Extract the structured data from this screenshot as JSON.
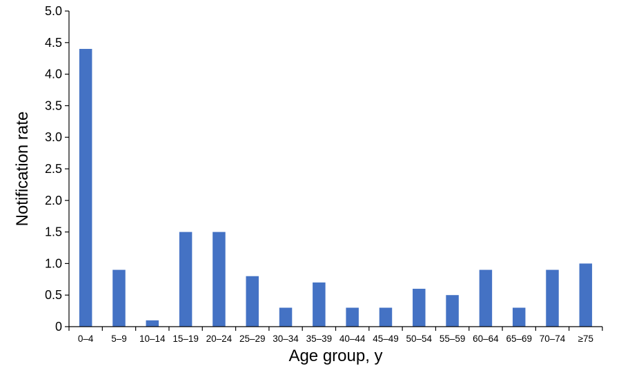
{
  "chart_data": {
    "type": "bar",
    "title": "",
    "xlabel": "Age group, y",
    "ylabel": "Notification rate",
    "ylim": [
      0,
      5
    ],
    "yticks": [
      "0",
      "0.5",
      "1.0",
      "1.5",
      "2.0",
      "2.5",
      "3.0",
      "3.5",
      "4.0",
      "4.5",
      "5.0"
    ],
    "categories": [
      "0–4",
      "5–9",
      "10–14",
      "15–19",
      "20–24",
      "25–29",
      "30–34",
      "35–39",
      "40–44",
      "45–49",
      "50–54",
      "55–59",
      "60–64",
      "65–69",
      "70–74",
      "≥75"
    ],
    "values": [
      4.4,
      0.9,
      0.1,
      1.5,
      1.5,
      0.8,
      0.3,
      0.7,
      0.3,
      0.3,
      0.6,
      0.5,
      0.9,
      0.3,
      0.9,
      1.0
    ],
    "bar_color": "#4472C4",
    "grid": false,
    "legend": "none"
  }
}
